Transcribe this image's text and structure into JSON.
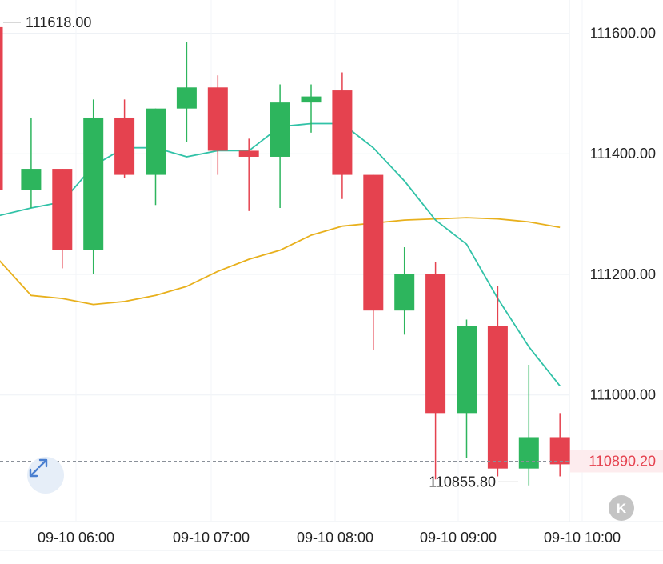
{
  "chart_data": {
    "type": "candlestick",
    "y_ticks": [
      "111600.00",
      "111400.00",
      "111200.00",
      "111000.00"
    ],
    "x_ticks": [
      "09-10 06:00",
      "09-10 07:00",
      "09-10 08:00",
      "09-10 09:00",
      "09-10 10:00"
    ],
    "ylim": [
      110790,
      111655
    ],
    "high_label": "111618.00",
    "low_label": "110855.80",
    "last_price": "110890.20",
    "colors": {
      "up": "#2db55d",
      "down": "#e5424f",
      "ma_fast": "#31c2a7",
      "ma_slow": "#e8b01c",
      "last_price": "#e5424f"
    },
    "candles": [
      {
        "o": 111610,
        "h": 111618,
        "l": 111340,
        "c": 111340
      },
      {
        "o": 111340,
        "h": 111460,
        "l": 111310,
        "c": 111375
      },
      {
        "o": 111375,
        "h": 111375,
        "l": 111210,
        "c": 111240
      },
      {
        "o": 111240,
        "h": 111490,
        "l": 111200,
        "c": 111460
      },
      {
        "o": 111460,
        "h": 111490,
        "l": 111360,
        "c": 111365
      },
      {
        "o": 111365,
        "h": 111475,
        "l": 111315,
        "c": 111475
      },
      {
        "o": 111475,
        "h": 111585,
        "l": 111420,
        "c": 111510
      },
      {
        "o": 111510,
        "h": 111530,
        "l": 111365,
        "c": 111405
      },
      {
        "o": 111405,
        "h": 111425,
        "l": 111305,
        "c": 111395
      },
      {
        "o": 111395,
        "h": 111515,
        "l": 111310,
        "c": 111485
      },
      {
        "o": 111485,
        "h": 111515,
        "l": 111435,
        "c": 111495
      },
      {
        "o": 111505,
        "h": 111535,
        "l": 111325,
        "c": 111365
      },
      {
        "o": 111365,
        "h": 111365,
        "l": 111075,
        "c": 111140
      },
      {
        "o": 111140,
        "h": 111245,
        "l": 111100,
        "c": 111200
      },
      {
        "o": 111200,
        "h": 111220,
        "l": 110860,
        "c": 110970
      },
      {
        "o": 110970,
        "h": 111125,
        "l": 110895,
        "c": 111115
      },
      {
        "o": 111115,
        "h": 111180,
        "l": 110865,
        "c": 110878
      },
      {
        "o": 110878,
        "h": 111050,
        "l": 110850,
        "c": 110930
      },
      {
        "o": 110930,
        "h": 110970,
        "l": 110865,
        "c": 110885
      }
    ],
    "ma_fast": [
      111295,
      111310,
      111320,
      111380,
      111410,
      111410,
      111395,
      111405,
      111405,
      111445,
      111450,
      111450,
      111410,
      111355,
      111290,
      111250,
      111160,
      111080,
      111015
    ],
    "ma_slow": [
      111235,
      111165,
      111160,
      111150,
      111155,
      111165,
      111180,
      111205,
      111225,
      111240,
      111265,
      111280,
      111285,
      111290,
      111292,
      111294,
      111292,
      111287,
      111278
    ]
  },
  "controls": {
    "back_glyph": "K"
  }
}
